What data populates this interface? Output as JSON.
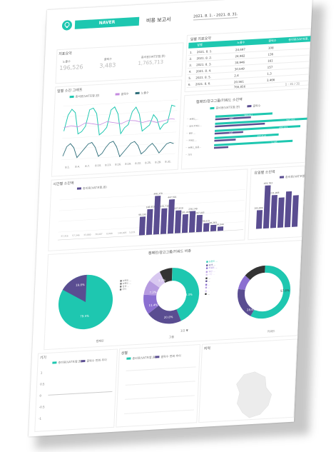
{
  "header": {
    "logo": "NAVER",
    "title": "비용 보고서",
    "date_range": "2021. 8. 1. - 2021. 8. 31."
  },
  "kpi": {
    "label": "지표요약",
    "items": [
      {
        "label": "노출수",
        "value": "196,526"
      },
      {
        "label": "클릭수",
        "value": "3,483"
      },
      {
        "label": "총비용(VAT포함,원)",
        "value": "1,765,713"
      }
    ]
  },
  "daily_table": {
    "title": "일별 지표요약",
    "headers": [
      "일별",
      "노출수",
      "클릭수",
      "총비용(VAT포함,원)"
    ],
    "rows": [
      {
        "n": "1.",
        "date": "2021. 8. 1.",
        "imp": "24,697",
        "clk": "108",
        "cost": ""
      },
      {
        "n": "2.",
        "date": "2021. 8. 2.",
        "imp": "24,982",
        "clk": "136",
        "cost": ""
      },
      {
        "n": "3.",
        "date": "2021. 8. 3.",
        "imp": "30,946",
        "clk": "161",
        "cost": ""
      },
      {
        "n": "4.",
        "date": "2021. 8. 4.",
        "imp": "30,549",
        "clk": "157",
        "cost": ""
      },
      {
        "n": "5.",
        "date": "2021. 8. 5.",
        "imp": "2,4",
        "clk": "1,3",
        "cost": ""
      },
      {
        "n": "6.",
        "date": "2021. 8. 6.",
        "imp": "20,561",
        "clk": "3,466",
        "cost": ""
      }
    ],
    "total": "766,856",
    "pager": "1 - 31 / 31"
  },
  "trend_chart": {
    "title": "일별 소진 그래프",
    "legend": [
      "총비용(VAT포함,원)",
      "클릭수",
      "노출수"
    ],
    "x_ticks": [
      "8.1.",
      "8.4.",
      "8.7.",
      "8.10.",
      "8.13.",
      "8.16.",
      "8.19.",
      "8.22.",
      "8.25.",
      "8.28.",
      "8.31."
    ]
  },
  "ad_group_chart": {
    "title": "캠페인/광고그룹/키워드 소진액",
    "legend": [
      "총비용(VAT포함,원)",
      "클릭수"
    ],
    "values": [
      "389,011",
      "487",
      "595,951",
      "492,121",
      "107",
      "337,614",
      "1,185"
    ]
  },
  "hourly_chart": {
    "title": "시간별 소진액",
    "legend": "총비용(VAT포함,원)",
    "labels": [
      "98,100",
      "148,953",
      "440,379",
      "152,710",
      "447,501",
      "227,610",
      "191,448",
      "230,140",
      "207,443",
      "78,015",
      "58,283",
      "34,044"
    ],
    "small_labels": [
      "37,316",
      "57,346",
      "33,880",
      "78,007",
      "0,000",
      "140,005",
      "5,031"
    ]
  },
  "weekday_chart": {
    "title": "요일별 소진액",
    "legend": "총비용(VAT포함,원)",
    "top_label": "493,783",
    "labels": [
      "193,004",
      "231,006"
    ]
  },
  "pie_section": {
    "title": "캠페인/광고그룹/키워드 비중",
    "pie1_labels": [
      "79.5%",
      "19.8%"
    ],
    "pie2_labels": [
      "43.3%",
      "20.8%",
      "11.4%",
      "7.3%",
      "5.2%"
    ],
    "pie3_labels": [
      "57.8%",
      "28.6%"
    ],
    "footer": [
      "캠페인",
      "그룹",
      "키워드"
    ],
    "pager": "1/2 ▼"
  },
  "bottom": {
    "titles": [
      "기기",
      "성별",
      "지역"
    ],
    "legend": [
      "총비용(VAT포함,원)",
      "클릭수 변화 추이"
    ],
    "ticks": [
      "1",
      "0.5",
      "0",
      "-0.5",
      "-1"
    ]
  }
}
